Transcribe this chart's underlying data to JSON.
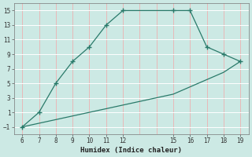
{
  "xlabel": "Humidex (Indice chaleur)",
  "line1_x": [
    6,
    7,
    8,
    9,
    10,
    11,
    12,
    15,
    16,
    17,
    18,
    19
  ],
  "line1_y": [
    -1,
    1,
    5,
    8,
    10,
    13,
    15,
    15,
    15,
    10,
    9,
    8
  ],
  "line2_x": [
    6,
    7,
    8,
    9,
    10,
    11,
    12,
    13,
    14,
    15,
    16,
    17,
    18,
    19
  ],
  "line2_y": [
    -1,
    -0.5,
    0,
    0.5,
    1.0,
    1.5,
    2.0,
    2.5,
    3.0,
    3.5,
    4.5,
    5.5,
    6.5,
    8
  ],
  "line_color": "#2a7a6a",
  "bg_color": "#cce9e4",
  "grid_color_major": "#ffffff",
  "grid_color_minor": "#e8b8b8",
  "xlim": [
    5.5,
    19.5
  ],
  "ylim": [
    -2,
    16
  ],
  "xticks": [
    6,
    7,
    8,
    9,
    10,
    11,
    12,
    15,
    16,
    17,
    18,
    19
  ],
  "yticks": [
    -1,
    1,
    3,
    5,
    7,
    9,
    11,
    13,
    15
  ]
}
